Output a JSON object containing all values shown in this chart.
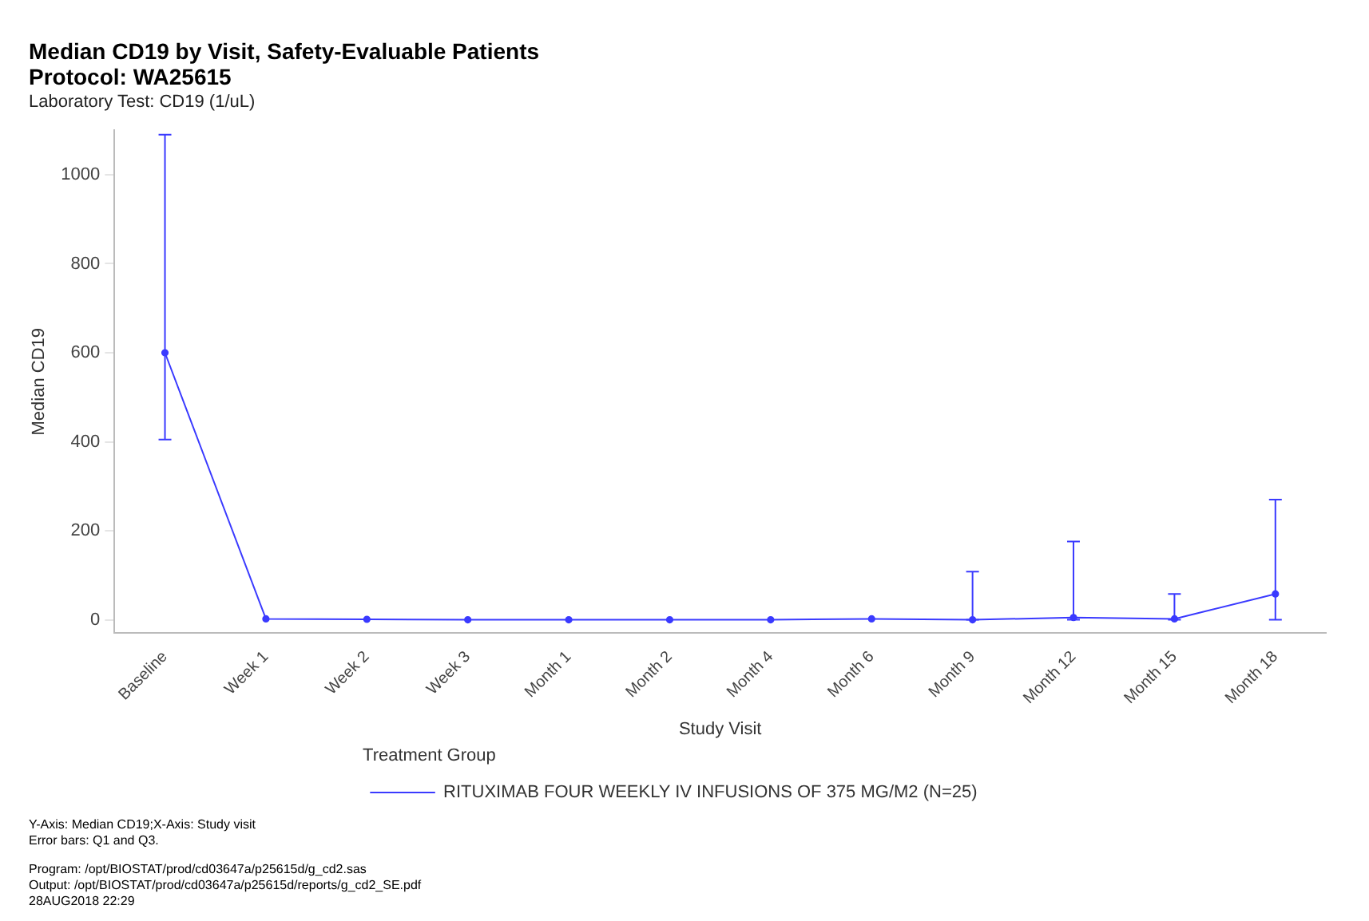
{
  "chart_data": {
    "type": "line",
    "title": "Median CD19 by Visit, Safety-Evaluable Patients\nProtocol: WA25615",
    "subtitle": "Laboratory Test: CD19 (1/uL)",
    "xlabel": "Study Visit",
    "ylabel": "Median CD19",
    "legend_title": "Treatment Group",
    "categories": [
      "Baseline",
      "Week 1",
      "Week 2",
      "Week 3",
      "Month 1",
      "Month 2",
      "Month 4",
      "Month 6",
      "Month 9",
      "Month 12",
      "Month 15",
      "Month 18"
    ],
    "series": [
      {
        "name": "RITUXIMAB FOUR WEEKLY IV INFUSIONS OF 375 MG/M2 (N=25)",
        "color": "#3a3aff",
        "values": [
          600,
          2,
          1,
          0,
          0,
          0,
          0,
          2,
          0,
          5,
          2,
          58
        ],
        "errors": [
          [
            405,
            1090
          ],
          null,
          null,
          null,
          null,
          null,
          null,
          null,
          [
            0,
            108
          ],
          [
            0,
            176
          ],
          [
            0,
            58
          ],
          [
            0,
            270
          ]
        ]
      }
    ],
    "ylim": [
      -30,
      1100
    ],
    "yticks": [
      0,
      200,
      400,
      600,
      800,
      1000
    ],
    "grid": false,
    "legend": "bottom",
    "marker": "circle",
    "line_style": "solid",
    "annotations": [
      "Y-Axis: Median CD19;X-Axis: Study visit",
      "Error bars: Q1 and Q3.",
      "Program: /opt/BIOSTAT/prod/cd03647a/p25615d/g_cd2.sas",
      "Output: /opt/BIOSTAT/prod/cd03647a/p25615d/reports/g_cd2_SE.pdf",
      "28AUG2018 22:29"
    ]
  }
}
